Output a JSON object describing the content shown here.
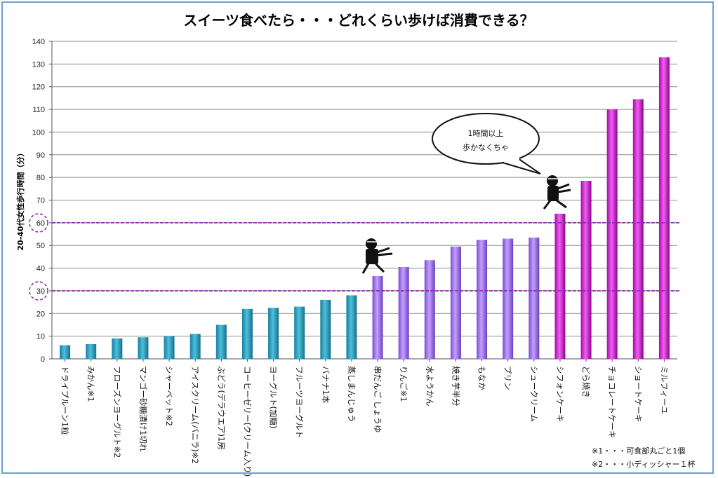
{
  "chart_data": {
    "type": "bar",
    "title": "スイーツ食べたら・・・どれくらい歩けば消費できる？",
    "ylabel": "20-40代女性歩行時間（分）",
    "ylim": [
      0,
      140
    ],
    "yticks": [
      0,
      10,
      20,
      30,
      40,
      50,
      60,
      70,
      80,
      90,
      100,
      110,
      120,
      130,
      140
    ],
    "categories": [
      "ドライプルーン1粒",
      "みかん※1",
      "フローズンヨーグルト※2",
      "マンゴー砂糖漬け1切れ",
      "シャーベット※2",
      "アイスクリーム(バニラ)※2",
      "ぶどう(デラウエア)1房",
      "コーヒーゼリー(クリーム入り)",
      "ヨーグルト(加糖)",
      "フルーツヨーグルト",
      "バナナ1本",
      "蒸しまんじゅう",
      "串だんご しょうゆ",
      "りんご※1",
      "水ようかん",
      "焼き芋半分",
      "もなか",
      "プリン",
      "シュークリーム",
      "シフォンケーキ",
      "どら焼き",
      "チョコレートケーキ",
      "ショートケーキ",
      "ミルフィーユ"
    ],
    "values": [
      6,
      6.5,
      9,
      9.5,
      10,
      11,
      15,
      22,
      22.5,
      23,
      26,
      28,
      36.5,
      40.5,
      43.5,
      49.5,
      52.5,
      53,
      53.5,
      64,
      78.5,
      110,
      114.5,
      133
    ],
    "colors": {
      "under30": "#2a9fbf",
      "30to60": "#a070e8",
      "over60": "#d020d0"
    },
    "reference_lines": [
      30,
      60
    ],
    "reference_color": "#8a2aa8",
    "grid": true,
    "annotations": {
      "bubble_line1": "1時間以上",
      "bubble_line2": "歩かなくちゃ",
      "note1": "※1・・・可食部丸ごと1個",
      "note2": "※2・・・小ディッシャー１杯"
    }
  }
}
